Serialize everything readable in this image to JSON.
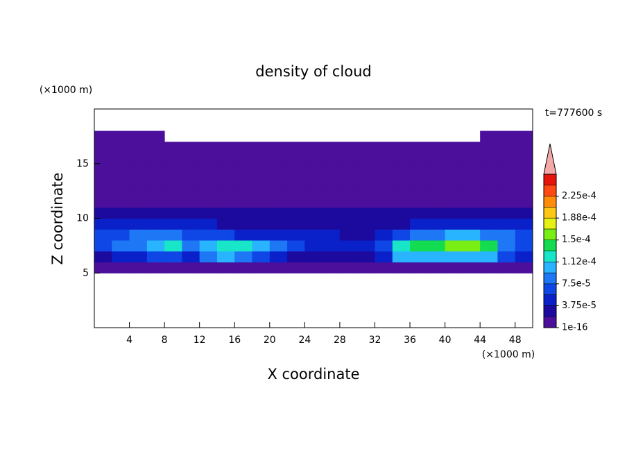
{
  "chart_data": {
    "type": "contour",
    "title": "density of cloud",
    "x_label": "X coordinate",
    "y_label": "Z coordinate",
    "x_unit": "(×1000 m)",
    "y_unit": "(×1000 m)",
    "time_label": "t=777600 s",
    "xlim": [
      0,
      50
    ],
    "ylim": [
      0,
      20
    ],
    "xticks": [
      4,
      8,
      12,
      16,
      20,
      24,
      28,
      32,
      36,
      40,
      44,
      48
    ],
    "yticks": [
      5,
      10,
      15
    ],
    "x": [
      1,
      3,
      5,
      7,
      9,
      11,
      13,
      15,
      17,
      19,
      21,
      23,
      25,
      27,
      29,
      31,
      33,
      35,
      37,
      39,
      41,
      43,
      45,
      47,
      49
    ],
    "z": [
      0.5,
      1.5,
      2.5,
      3.5,
      4.5,
      5.5,
      6.5,
      7.5,
      8.5,
      9.5,
      10.5,
      11.5,
      12.5,
      13.5,
      14.5,
      15.5,
      16.5,
      17.5,
      18.5,
      19.5
    ],
    "values": [
      [
        null,
        null,
        null,
        null,
        null,
        null,
        null,
        null,
        null,
        null,
        null,
        null,
        null,
        null,
        null,
        null,
        null,
        null,
        null,
        null,
        null,
        null,
        null,
        null,
        null
      ],
      [
        null,
        null,
        null,
        null,
        null,
        null,
        null,
        null,
        null,
        null,
        null,
        null,
        null,
        null,
        null,
        null,
        null,
        null,
        null,
        null,
        null,
        null,
        null,
        null,
        null
      ],
      [
        null,
        null,
        null,
        null,
        null,
        null,
        null,
        null,
        null,
        null,
        null,
        null,
        null,
        null,
        null,
        null,
        null,
        null,
        null,
        null,
        null,
        null,
        null,
        null,
        null
      ],
      [
        null,
        null,
        null,
        null,
        null,
        null,
        null,
        null,
        null,
        null,
        null,
        null,
        null,
        null,
        null,
        null,
        null,
        null,
        null,
        null,
        null,
        null,
        null,
        null,
        null
      ],
      [
        null,
        null,
        null,
        null,
        null,
        null,
        null,
        null,
        null,
        null,
        null,
        null,
        null,
        null,
        null,
        null,
        null,
        null,
        null,
        null,
        null,
        null,
        null,
        null,
        null
      ],
      [
        1e-05,
        1e-05,
        1e-05,
        1e-05,
        1e-05,
        1e-05,
        1e-05,
        1e-05,
        1e-05,
        1e-05,
        1e-05,
        1e-05,
        1e-05,
        1e-05,
        1e-05,
        1e-05,
        1e-05,
        1e-05,
        1e-05,
        1e-05,
        1e-05,
        1e-05,
        1e-05,
        1e-05,
        1e-05
      ],
      [
        3e-05,
        4e-05,
        5e-05,
        6e-05,
        6e-05,
        4e-05,
        8e-05,
        0.0001,
        9e-05,
        6e-05,
        4e-05,
        3e-05,
        3e-05,
        3e-05,
        3e-05,
        3e-05,
        5e-05,
        0.0001,
        0.00011,
        0.00011,
        0.00011,
        0.00011,
        0.0001,
        6e-05,
        4e-05
      ],
      [
        6e-05,
        8e-05,
        9e-05,
        0.00011,
        0.00012,
        9e-05,
        0.00011,
        0.00013,
        0.00013,
        0.00011,
        8e-05,
        6e-05,
        5e-05,
        5e-05,
        4e-05,
        4e-05,
        6e-05,
        0.00013,
        0.00014,
        0.00014,
        0.00015,
        0.00016,
        0.00014,
        9e-05,
        7e-05
      ],
      [
        6e-05,
        7e-05,
        8e-05,
        9e-05,
        9e-05,
        7e-05,
        6e-05,
        6e-05,
        5e-05,
        5e-05,
        4e-05,
        4e-05,
        4e-05,
        4e-05,
        3e-05,
        3e-05,
        4e-05,
        6e-05,
        8e-05,
        9e-05,
        0.0001,
        0.00011,
        9e-05,
        8e-05,
        7e-05
      ],
      [
        4e-05,
        5e-05,
        5e-05,
        5e-05,
        4e-05,
        4e-05,
        4e-05,
        3e-05,
        3e-05,
        3e-05,
        3e-05,
        3e-05,
        3e-05,
        3e-05,
        2e-05,
        2e-05,
        3e-05,
        3e-05,
        4e-05,
        4e-05,
        5e-05,
        5e-05,
        5e-05,
        4e-05,
        4e-05
      ],
      [
        2e-05,
        2e-05,
        2e-05,
        2e-05,
        2e-05,
        2e-05,
        2e-05,
        2e-05,
        2e-05,
        3e-05,
        3e-05,
        2e-05,
        2e-05,
        2e-05,
        2e-05,
        2e-05,
        2e-05,
        2e-05,
        2e-05,
        2e-05,
        2e-05,
        2e-05,
        2e-05,
        2e-05,
        2e-05
      ],
      [
        5e-06,
        5e-06,
        5e-06,
        5e-06,
        5e-06,
        5e-06,
        5e-06,
        5e-06,
        5e-06,
        5e-06,
        5e-06,
        5e-06,
        5e-06,
        5e-06,
        5e-06,
        5e-06,
        5e-06,
        5e-06,
        5e-06,
        5e-06,
        5e-06,
        5e-06,
        5e-06,
        5e-06,
        5e-06
      ],
      [
        5e-06,
        5e-06,
        5e-06,
        5e-06,
        5e-06,
        5e-06,
        5e-06,
        5e-06,
        5e-06,
        5e-06,
        5e-06,
        5e-06,
        5e-06,
        5e-06,
        5e-06,
        5e-06,
        5e-06,
        5e-06,
        5e-06,
        5e-06,
        5e-06,
        5e-06,
        5e-06,
        5e-06,
        5e-06
      ],
      [
        5e-06,
        5e-06,
        5e-06,
        5e-06,
        5e-06,
        5e-06,
        5e-06,
        5e-06,
        5e-06,
        5e-06,
        5e-06,
        5e-06,
        5e-06,
        5e-06,
        5e-06,
        5e-06,
        5e-06,
        5e-06,
        5e-06,
        5e-06,
        5e-06,
        5e-06,
        5e-06,
        5e-06,
        5e-06
      ],
      [
        5e-06,
        5e-06,
        5e-06,
        5e-06,
        5e-06,
        5e-06,
        5e-06,
        5e-06,
        5e-06,
        5e-06,
        5e-06,
        5e-06,
        5e-06,
        5e-06,
        5e-06,
        5e-06,
        5e-06,
        5e-06,
        5e-06,
        5e-06,
        5e-06,
        5e-06,
        5e-06,
        5e-06,
        5e-06
      ],
      [
        5e-06,
        5e-06,
        5e-06,
        5e-06,
        5e-06,
        5e-06,
        5e-06,
        5e-06,
        5e-06,
        5e-06,
        5e-06,
        5e-06,
        5e-06,
        5e-06,
        5e-06,
        5e-06,
        5e-06,
        5e-06,
        5e-06,
        5e-06,
        5e-06,
        5e-06,
        5e-06,
        5e-06,
        5e-06
      ],
      [
        5e-06,
        5e-06,
        5e-06,
        5e-06,
        5e-06,
        5e-06,
        5e-06,
        5e-06,
        5e-06,
        5e-06,
        5e-06,
        5e-06,
        5e-06,
        5e-06,
        5e-06,
        5e-06,
        5e-06,
        5e-06,
        5e-06,
        5e-06,
        5e-06,
        5e-06,
        5e-06,
        5e-06,
        5e-06
      ],
      [
        5e-06,
        5e-06,
        5e-06,
        5e-06,
        null,
        null,
        null,
        null,
        null,
        null,
        null,
        null,
        null,
        null,
        null,
        null,
        null,
        null,
        null,
        null,
        null,
        null,
        5e-06,
        5e-06,
        5e-06
      ],
      [
        null,
        null,
        null,
        null,
        null,
        null,
        null,
        null,
        null,
        null,
        null,
        null,
        null,
        null,
        null,
        null,
        null,
        null,
        null,
        null,
        null,
        null,
        null,
        null,
        null
      ],
      [
        null,
        null,
        null,
        null,
        null,
        null,
        null,
        null,
        null,
        null,
        null,
        null,
        null,
        null,
        null,
        null,
        null,
        null,
        null,
        null,
        null,
        null,
        null,
        null,
        null
      ]
    ],
    "colorbar": {
      "levels": [
        1e-16,
        1.875e-05,
        3.75e-05,
        5.625e-05,
        7.5e-05,
        9.375e-05,
        0.0001125,
        0.00013125,
        0.00015,
        0.00016875,
        0.0001875,
        0.00020625,
        0.000225,
        0.00024375,
        0.0002625
      ],
      "colors": [
        "#4b0f9c",
        "#1c0a9e",
        "#0a20c8",
        "#0f46e6",
        "#1e78f5",
        "#28b4ff",
        "#19e6c8",
        "#14dc50",
        "#78ee14",
        "#e6f014",
        "#ffc814",
        "#ff8c0a",
        "#ff4a14",
        "#e6140a"
      ],
      "extend_color": "#f4a8a8",
      "ticks": [
        {
          "value": 1e-16,
          "label": "1e-16"
        },
        {
          "value": 3.75e-05,
          "label": "3.75e-5"
        },
        {
          "value": 7.5e-05,
          "label": "7.5e-5"
        },
        {
          "value": 0.0001125,
          "label": "1.12e-4"
        },
        {
          "value": 0.00015,
          "label": "1.5e-4"
        },
        {
          "value": 0.0001875,
          "label": "1.88e-4"
        },
        {
          "value": 0.000225,
          "label": "2.25e-4"
        }
      ]
    }
  }
}
